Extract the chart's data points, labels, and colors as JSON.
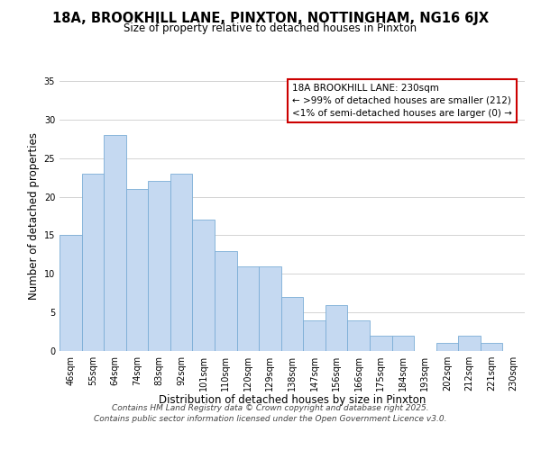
{
  "title": "18A, BROOKHILL LANE, PINXTON, NOTTINGHAM, NG16 6JX",
  "subtitle": "Size of property relative to detached houses in Pinxton",
  "xlabel": "Distribution of detached houses by size in Pinxton",
  "ylabel": "Number of detached properties",
  "bar_labels": [
    "46sqm",
    "55sqm",
    "64sqm",
    "74sqm",
    "83sqm",
    "92sqm",
    "101sqm",
    "110sqm",
    "120sqm",
    "129sqm",
    "138sqm",
    "147sqm",
    "156sqm",
    "166sqm",
    "175sqm",
    "184sqm",
    "193sqm",
    "202sqm",
    "212sqm",
    "221sqm",
    "230sqm"
  ],
  "bar_values": [
    15,
    23,
    28,
    21,
    22,
    23,
    17,
    13,
    11,
    11,
    7,
    4,
    6,
    4,
    2,
    2,
    0,
    1,
    2,
    1,
    0
  ],
  "bar_color": "#c5d9f1",
  "bar_edgecolor": "#7badd6",
  "ylim": [
    0,
    35
  ],
  "yticks": [
    0,
    5,
    10,
    15,
    20,
    25,
    30,
    35
  ],
  "legend_title": "18A BROOKHILL LANE: 230sqm",
  "legend_line1": "← >99% of detached houses are smaller (212)",
  "legend_line2": "<1% of semi-detached houses are larger (0) →",
  "legend_box_color": "#ffffff",
  "legend_box_edgecolor": "#cc0000",
  "footer1": "Contains HM Land Registry data © Crown copyright and database right 2025.",
  "footer2": "Contains public sector information licensed under the Open Government Licence v3.0.",
  "background_color": "#ffffff",
  "grid_color": "#cccccc",
  "title_fontsize": 10.5,
  "subtitle_fontsize": 8.5,
  "axis_label_fontsize": 8.5,
  "tick_fontsize": 7.0,
  "legend_fontsize": 7.5,
  "footer_fontsize": 6.5
}
